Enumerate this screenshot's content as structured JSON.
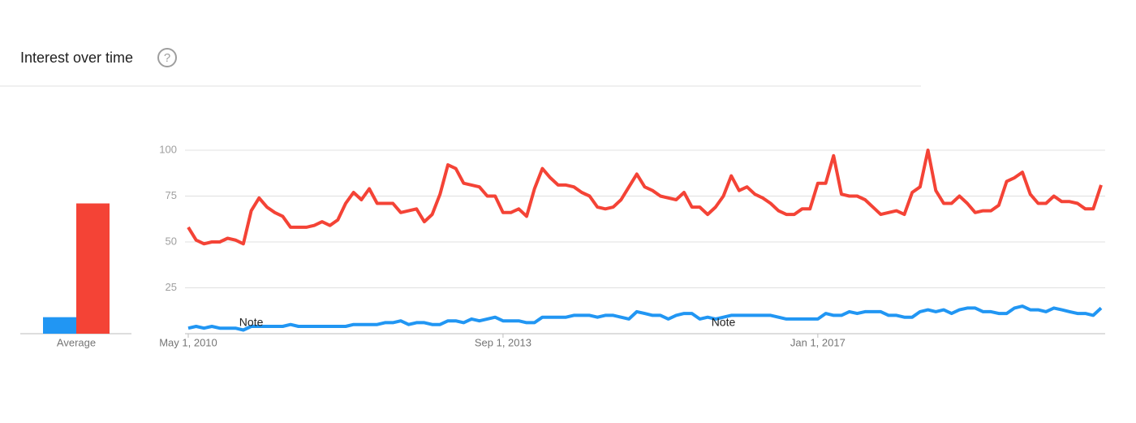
{
  "chart_data": {
    "type": "line",
    "title": "Interest over time",
    "help_icon": "?",
    "x": [
      "2010-05-01",
      "2010-06-01",
      "2010-07-01",
      "2010-08-01",
      "2010-09-01",
      "2010-10-01",
      "2010-11-01",
      "2010-12-01",
      "2011-01-01",
      "2011-02-01",
      "2011-03-01",
      "2011-04-01",
      "2011-05-01",
      "2011-06-01",
      "2011-07-01",
      "2011-08-01",
      "2011-09-01",
      "2011-10-01",
      "2011-11-01",
      "2011-12-01",
      "2012-01-01",
      "2012-02-01",
      "2012-03-01",
      "2012-04-01",
      "2012-05-01",
      "2012-06-01",
      "2012-07-01",
      "2012-08-01",
      "2012-09-01",
      "2012-10-01",
      "2012-11-01",
      "2012-12-01",
      "2013-01-01",
      "2013-02-01",
      "2013-03-01",
      "2013-04-01",
      "2013-05-01",
      "2013-06-01",
      "2013-07-01",
      "2013-08-01",
      "2013-09-01",
      "2013-10-01",
      "2013-11-01",
      "2013-12-01",
      "2014-01-01",
      "2014-02-01",
      "2014-03-01",
      "2014-04-01",
      "2014-05-01",
      "2014-06-01",
      "2014-07-01",
      "2014-08-01",
      "2014-09-01",
      "2014-10-01",
      "2014-11-01",
      "2014-12-01",
      "2015-01-01",
      "2015-02-01",
      "2015-03-01",
      "2015-04-01",
      "2015-05-01",
      "2015-06-01",
      "2015-07-01",
      "2015-08-01",
      "2015-09-01",
      "2015-10-01",
      "2015-11-01",
      "2015-12-01",
      "2016-01-01",
      "2016-02-01",
      "2016-03-01",
      "2016-04-01",
      "2016-05-01",
      "2016-06-01",
      "2016-07-01",
      "2016-08-01",
      "2016-09-01",
      "2016-10-01",
      "2016-11-01",
      "2016-12-01",
      "2017-01-01",
      "2017-02-01",
      "2017-03-01",
      "2017-04-01",
      "2017-05-01",
      "2017-06-01",
      "2017-07-01",
      "2017-08-01",
      "2017-09-01",
      "2017-10-01",
      "2017-11-01",
      "2017-12-01",
      "2018-01-01",
      "2018-02-01",
      "2018-03-01",
      "2018-04-01",
      "2018-05-01",
      "2018-06-01",
      "2018-07-01",
      "2018-08-01",
      "2018-09-01",
      "2018-10-01",
      "2018-11-01",
      "2018-12-01",
      "2019-01-01",
      "2019-02-01",
      "2019-03-01",
      "2019-04-01",
      "2019-05-01",
      "2019-06-01",
      "2019-07-01",
      "2019-08-01",
      "2019-09-01",
      "2019-10-01",
      "2019-11-01",
      "2019-12-01",
      "2020-01-01"
    ],
    "series": [
      {
        "color": "#f44336",
        "values": [
          58,
          51,
          49,
          50,
          50,
          52,
          51,
          49,
          67,
          74,
          69,
          66,
          64,
          58,
          58,
          58,
          59,
          61,
          59,
          62,
          71,
          77,
          73,
          79,
          71,
          71,
          71,
          66,
          67,
          68,
          61,
          65,
          76,
          92,
          90,
          82,
          81,
          80,
          75,
          75,
          66,
          66,
          68,
          64,
          79,
          90,
          85,
          81,
          81,
          80,
          77,
          75,
          69,
          68,
          69,
          73,
          80,
          87,
          80,
          78,
          75,
          74,
          73,
          77,
          69,
          69,
          65,
          69,
          75,
          86,
          78,
          80,
          76,
          74,
          71,
          67,
          65,
          65,
          68,
          68,
          82,
          82,
          97,
          76,
          75,
          75,
          73,
          69,
          65,
          66,
          67,
          65,
          77,
          80,
          100,
          78,
          71,
          71,
          75,
          71,
          66,
          67,
          67,
          70,
          83,
          85,
          88,
          76,
          71,
          71,
          75,
          72,
          72,
          71,
          68,
          68,
          81
        ]
      },
      {
        "color": "#2196f3",
        "values": [
          3,
          4,
          3,
          4,
          3,
          3,
          3,
          2,
          4,
          4,
          4,
          4,
          4,
          5,
          4,
          4,
          4,
          4,
          4,
          4,
          4,
          5,
          5,
          5,
          5,
          6,
          6,
          7,
          5,
          6,
          6,
          5,
          5,
          7,
          7,
          6,
          8,
          7,
          8,
          9,
          7,
          7,
          7,
          6,
          6,
          9,
          9,
          9,
          9,
          10,
          10,
          10,
          9,
          10,
          10,
          9,
          8,
          12,
          11,
          10,
          10,
          8,
          10,
          11,
          11,
          8,
          9,
          8,
          9,
          10,
          10,
          10,
          10,
          10,
          10,
          9,
          8,
          8,
          8,
          8,
          8,
          11,
          10,
          10,
          12,
          11,
          12,
          12,
          12,
          10,
          10,
          9,
          9,
          12,
          13,
          12,
          13,
          11,
          13,
          14,
          14,
          12,
          12,
          11,
          11,
          14,
          15,
          13,
          13,
          12,
          14,
          13,
          12,
          11,
          11,
          10,
          14
        ]
      }
    ],
    "ylim": [
      0,
      100
    ],
    "yticks": [
      25,
      50,
      75,
      100
    ],
    "grid": true,
    "xticks": [
      {
        "value": "2010-05-01",
        "label": "May 1, 2010"
      },
      {
        "value": "2013-09-01",
        "label": "Sep 1, 2013"
      },
      {
        "value": "2017-01-01",
        "label": "Jan 1, 2017"
      }
    ],
    "annotations": [
      {
        "x": "2011-01-01",
        "text": "Note"
      },
      {
        "x": "2016-01-01",
        "text": "Note"
      }
    ],
    "averages": {
      "label": "Average",
      "values": [
        9,
        71
      ]
    }
  }
}
